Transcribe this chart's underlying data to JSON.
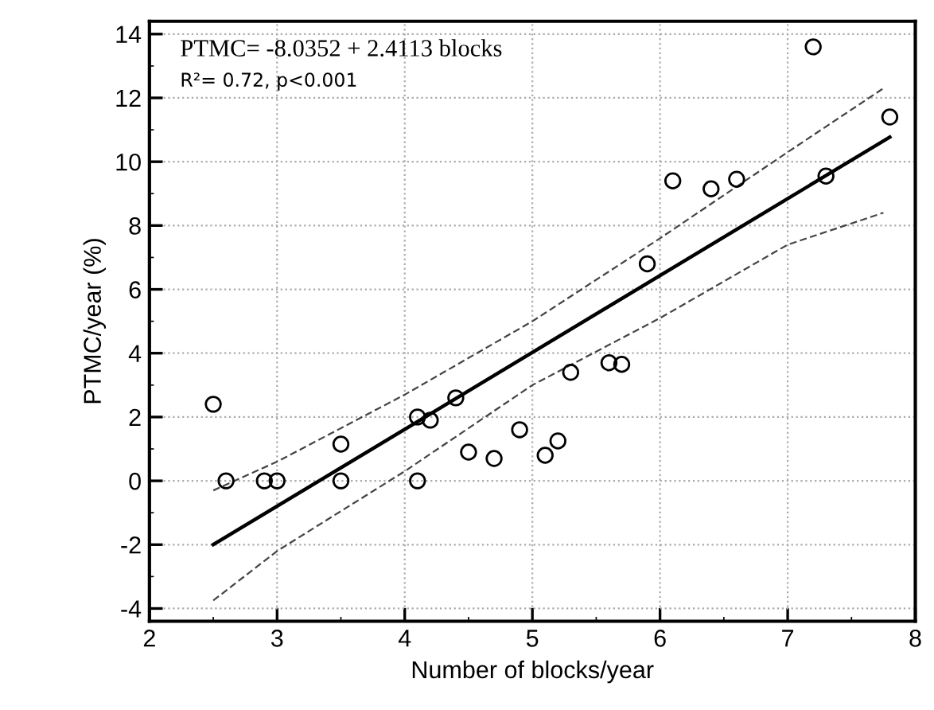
{
  "chart_data": {
    "type": "scatter",
    "xlabel": "Number of blocks/year",
    "ylabel": "PTMC/year (%)",
    "xlim": [
      2,
      8
    ],
    "ylim": [
      -4.4,
      14.4
    ],
    "xticks": [
      2,
      3,
      4,
      5,
      6,
      7,
      8
    ],
    "yticks": [
      -4,
      -2,
      0,
      2,
      4,
      6,
      8,
      10,
      12,
      14
    ],
    "grid": true,
    "annotations": [
      "PTMC= -8.0352 + 2.4113 blocks",
      "R²= 0.72, p<0.001"
    ],
    "series": [
      {
        "marker": "circle",
        "color": "#000000",
        "x": [
          2.5,
          2.6,
          2.9,
          3.0,
          3.5,
          3.5,
          4.1,
          4.2,
          4.1,
          4.4,
          4.5,
          4.7,
          4.9,
          5.1,
          5.2,
          5.3,
          5.6,
          5.7,
          5.9,
          6.1,
          6.4,
          6.6,
          7.2,
          7.3,
          7.8
        ],
        "values": [
          2.4,
          0,
          0,
          0,
          1.15,
          0,
          2.0,
          1.9,
          0,
          2.6,
          0.9,
          0.7,
          1.6,
          0.8,
          1.25,
          3.4,
          3.7,
          3.65,
          6.8,
          9.4,
          9.15,
          9.45,
          13.6,
          9.55,
          11.4
        ]
      },
      {
        "type": "line",
        "line_style": "solid",
        "color": "#000000",
        "x": [
          2.5,
          7.8
        ],
        "values": [
          -2.0,
          10.77
        ]
      },
      {
        "type": "line",
        "line_style": "dashed",
        "color": "#444444",
        "x": [
          2.5,
          3,
          4,
          5,
          6,
          7,
          7.75
        ],
        "values": [
          -0.3,
          0.6,
          2.7,
          5.0,
          7.6,
          10.3,
          12.3
        ]
      },
      {
        "type": "line",
        "line_style": "dashed",
        "color": "#444444",
        "x": [
          2.5,
          3,
          4,
          5,
          6,
          7,
          7.75
        ],
        "values": [
          -3.75,
          -2.2,
          0.3,
          3.0,
          5.1,
          7.4,
          8.4
        ]
      }
    ]
  }
}
